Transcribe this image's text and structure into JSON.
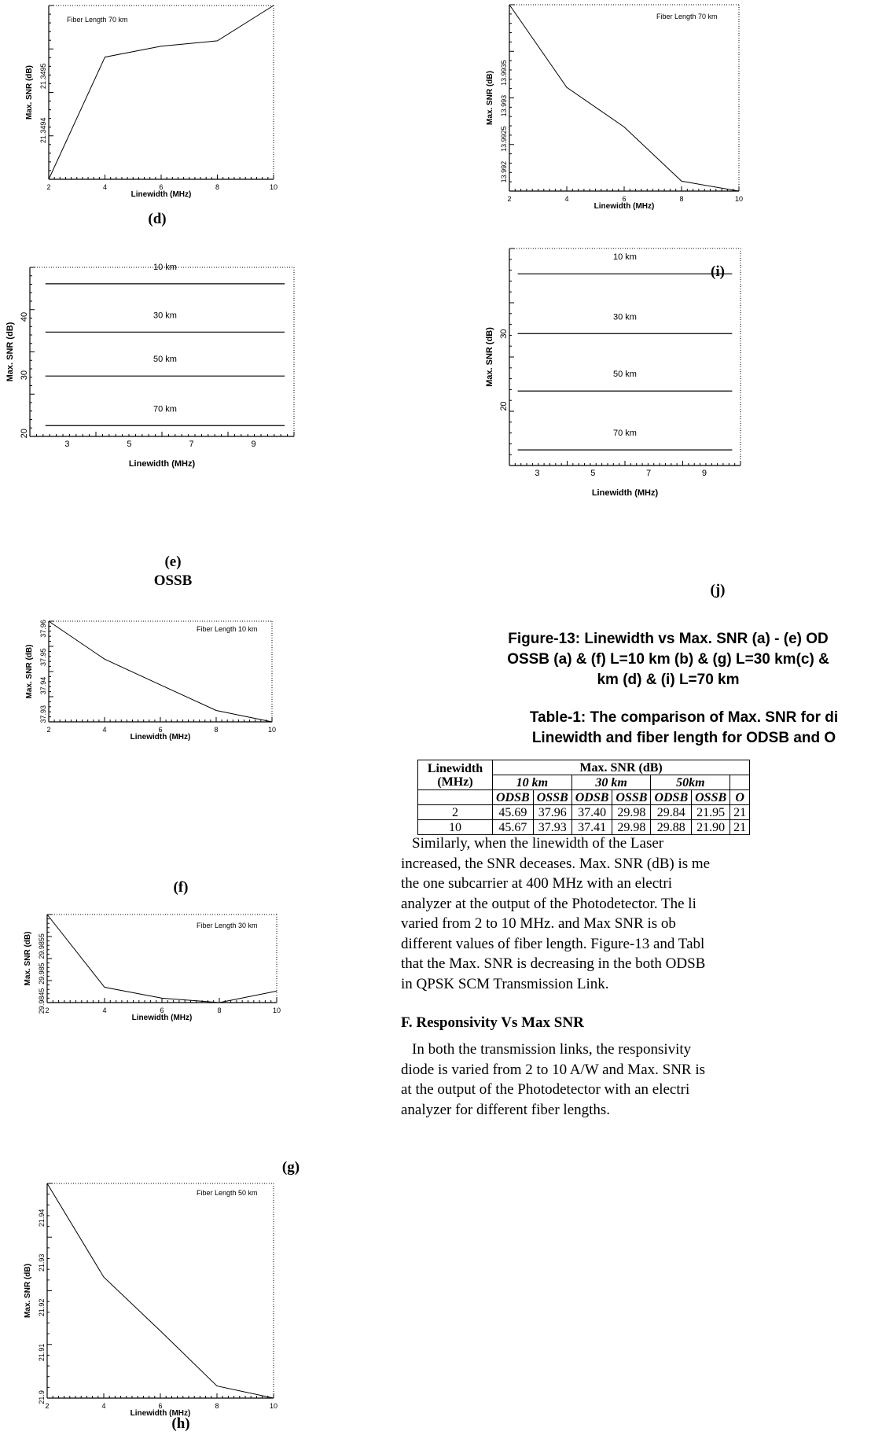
{
  "plots": {
    "d": {
      "ann": "Fiber Length 70 km",
      "ylabel": "Max. SNR (dB)",
      "xlabel": "Linewidth (MHz)",
      "yticks": [
        "21.3494",
        "21.3495"
      ],
      "xticks": [
        "2",
        "4",
        "6",
        "8",
        "10"
      ]
    },
    "e": {
      "ylabel": "Max. SNR (dB)",
      "xlabel": "Linewidth (MHz)",
      "yticks": [
        "20",
        "30",
        "40"
      ],
      "xticks": [
        "3",
        "5",
        "7",
        "9"
      ],
      "lines": [
        "10 km",
        "30 km",
        "50 km",
        "70 km"
      ]
    },
    "f": {
      "ann": "Fiber Length 10 km",
      "ylabel": "Max. SNR (dB)",
      "xlabel": "Linewidth (MHz)",
      "yticks": [
        "37.93",
        "37.94",
        "37.95",
        "37.96"
      ],
      "xticks": [
        "2",
        "4",
        "6",
        "8",
        "10"
      ]
    },
    "g": {
      "ann": "Fiber Length 30 km",
      "ylabel": "Max. SNR (dB)",
      "xlabel": "Linewidth (MHz)",
      "yticks": [
        "29.9845",
        "29.985",
        "29.9855"
      ],
      "xticks": [
        "2",
        "4",
        "6",
        "8",
        "10"
      ]
    },
    "h": {
      "ann": "Fiber Length 50 km",
      "ylabel": "Max. SNR (dB)",
      "xlabel": "Linewidth (MHz)",
      "yticks": [
        "21.9",
        "21.91",
        "21.92",
        "21.93",
        "21.94"
      ],
      "xticks": [
        "2",
        "4",
        "6",
        "8",
        "10"
      ]
    },
    "i": {
      "ann": "Fiber Length 70 km",
      "ylabel": "Max. SNR (dB)",
      "xlabel": "Linewidth (MHz)",
      "yticks": [
        "13.992",
        "13.9925",
        "13.993",
        "13.9935"
      ],
      "xticks": [
        "2",
        "4",
        "6",
        "8",
        "10"
      ]
    },
    "j": {
      "ylabel": "Max. SNR (dB)",
      "xlabel": "Linewidth (MHz)",
      "yticks": [
        "20",
        "30"
      ],
      "xticks": [
        "3",
        "5",
        "7",
        "9"
      ],
      "lines": [
        "10 km",
        "30 km",
        "50 km",
        "70 km"
      ]
    }
  },
  "captions": {
    "d": "(d)",
    "e": "(e)",
    "ossb": "OSSB",
    "f": "(f)",
    "g": "(g)",
    "h": "(h)",
    "i": "(i)",
    "j": "(j)"
  },
  "figure_caption": {
    "line1": "Figure-13: Linewidth vs Max. SNR (a) - (e) OD",
    "line2": "OSSB (a) & (f) L=10 km (b) & (g) L=30 km(c) &",
    "line3": "km (d) & (i) L=70 km"
  },
  "table_caption": {
    "line1": "Table-1: The comparison of Max. SNR for di",
    "line2": "Linewidth and fiber length for ODSB and O"
  },
  "table": {
    "h_linewidth_1": "Linewidth",
    "h_linewidth_2": "(MHz)",
    "h_maxsnr": "Max. SNR (dB)",
    "h_10km": "10 km",
    "h_30km": "30 km",
    "h_50km": "50km",
    "odsb": "ODSB",
    "ossb": "OSSB",
    "o_trunc": "O",
    "rows": [
      {
        "lw": "2",
        "v": [
          "45.69",
          "37.96",
          "37.40",
          "29.98",
          "29.84",
          "21.95",
          "21"
        ]
      },
      {
        "lw": "10",
        "v": [
          "45.67",
          "37.93",
          "37.41",
          "29.98",
          "29.88",
          "21.90",
          "21"
        ]
      }
    ]
  },
  "para1": [
    "Similarly,  when  the  linewidth  of  the  Laser",
    "increased, the SNR deceases. Max. SNR (dB) is me",
    "the  one  subcarrier  at  400  MHz  with  an  electri",
    "analyzer at the output of the Photodetector. The li",
    "varied  from  2  to  10  MHz.  and  Max  SNR  is  ob",
    "different values of fiber length. Figure-13 and Tabl",
    "that the Max. SNR is decreasing in the both ODSB",
    "in QPSK SCM Transmission Link."
  ],
  "heading": "F.   Responsivity Vs Max SNR",
  "para2": [
    "In both the transmission links, the responsivity",
    "diode is varied from 2 to 10 A/W and Max. SNR is",
    "at the output of the Photodetector with an electri",
    "analyzer for different fiber lengths."
  ],
  "chart_data": [
    {
      "id": "d",
      "type": "line",
      "x": [
        2,
        4,
        6,
        8,
        10
      ],
      "y": [
        21.34933,
        21.349555,
        21.349575,
        21.349585,
        21.34965
      ],
      "xlim": [
        2,
        10
      ],
      "ylim": [
        21.34933,
        21.34965
      ]
    },
    {
      "id": "e",
      "type": "line",
      "x": [
        2.3,
        10
      ],
      "series": [
        {
          "name": "10 km",
          "values": [
            45.68,
            45.68
          ]
        },
        {
          "name": "30 km",
          "values": [
            37.4,
            37.4
          ]
        },
        {
          "name": "50 km",
          "values": [
            29.86,
            29.86
          ]
        },
        {
          "name": "70 km",
          "values": [
            21.35,
            21.35
          ]
        }
      ],
      "xlim": [
        1.8,
        10.3
      ],
      "ylim": [
        19.5,
        48.5
      ]
    },
    {
      "id": "f",
      "type": "line",
      "x": [
        2,
        4,
        6,
        8,
        10
      ],
      "y": [
        37.9626,
        37.9493,
        37.9403,
        37.9313,
        37.9273
      ],
      "xlim": [
        2,
        10
      ],
      "ylim": [
        37.9273,
        37.9626
      ]
    },
    {
      "id": "g",
      "type": "line",
      "x": [
        2,
        4,
        6,
        8,
        10
      ],
      "y": [
        29.98608,
        29.98475,
        29.98455,
        29.98447,
        29.98468
      ],
      "xlim": [
        2,
        10
      ],
      "ylim": [
        29.98447,
        29.98608
      ]
    },
    {
      "id": "h",
      "type": "line",
      "x": [
        2,
        4,
        6,
        8,
        10
      ],
      "y": [
        21.9477,
        21.9268,
        21.9148,
        21.9025,
        21.8998
      ],
      "xlim": [
        2,
        10
      ],
      "ylim": [
        21.8998,
        21.9477
      ]
    },
    {
      "id": "i",
      "type": "line",
      "x": [
        2,
        4,
        6,
        8,
        10
      ],
      "y": [
        13.99453,
        13.99328,
        13.99268,
        13.99186,
        13.99171
      ],
      "xlim": [
        2,
        10
      ],
      "ylim": [
        13.99171,
        13.99453
      ]
    },
    {
      "id": "j",
      "type": "line",
      "x": [
        2.3,
        10
      ],
      "series": [
        {
          "name": "10 km",
          "values": [
            38.3,
            38.3
          ]
        },
        {
          "name": "30 km",
          "values": [
            30.03,
            30.03
          ]
        },
        {
          "name": "50 km",
          "values": [
            22.1,
            22.1
          ]
        },
        {
          "name": "70 km",
          "values": [
            13.96,
            13.96
          ]
        }
      ],
      "xlim": [
        2.0,
        10.3
      ],
      "ylim": [
        11.8,
        41.8
      ]
    }
  ]
}
